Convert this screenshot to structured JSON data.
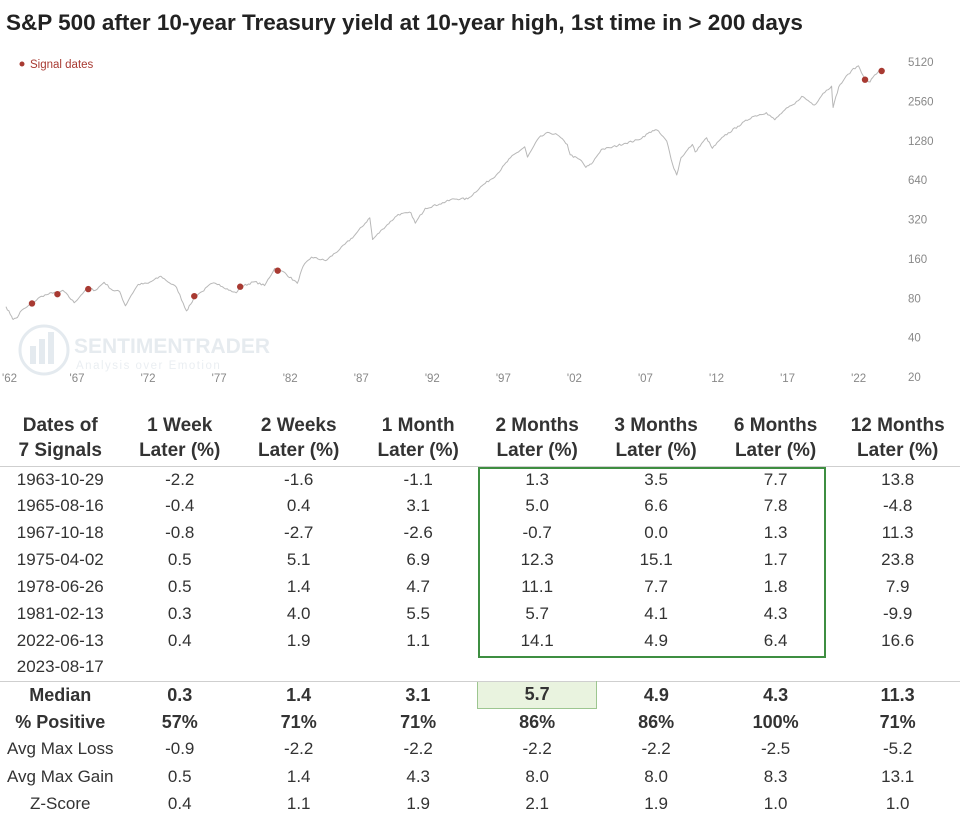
{
  "title": "S&P 500 after 10-year Treasury yield at 10-year high, 1st time in > 200 days",
  "chart_data": {
    "type": "line",
    "legend": "Signal dates",
    "legend_color": "#a83a32",
    "line_color": "#b8b8b8",
    "legend_placement": "top-left",
    "yscale": "log",
    "ylim": [
      20,
      5120
    ],
    "xlim": [
      1962.0,
      2024.7
    ],
    "yticks": [
      5120,
      2560,
      1280,
      640,
      320,
      160,
      80,
      40,
      20
    ],
    "xticks": [
      {
        "x": 1962,
        "label": "'62"
      },
      {
        "x": 1967,
        "label": "'67"
      },
      {
        "x": 1972,
        "label": "'72"
      },
      {
        "x": 1977,
        "label": "'77"
      },
      {
        "x": 1982,
        "label": "'82"
      },
      {
        "x": 1987,
        "label": "'87"
      },
      {
        "x": 1992,
        "label": "'92"
      },
      {
        "x": 1997,
        "label": "'97"
      },
      {
        "x": 2002,
        "label": "'02"
      },
      {
        "x": 2007,
        "label": "'07"
      },
      {
        "x": 2012,
        "label": "'12"
      },
      {
        "x": 2017,
        "label": "'17"
      },
      {
        "x": 2022,
        "label": "'22"
      }
    ],
    "series": [
      {
        "points": [
          [
            1962.0,
            69
          ],
          [
            1962.4,
            58
          ],
          [
            1962.5,
            55
          ],
          [
            1962.8,
            57
          ],
          [
            1963.0,
            63
          ],
          [
            1963.5,
            69
          ],
          [
            1963.8,
            73
          ],
          [
            1964.5,
            83
          ],
          [
            1965.0,
            86
          ],
          [
            1965.4,
            89
          ],
          [
            1965.6,
            86
          ],
          [
            1966.0,
            92
          ],
          [
            1966.8,
            74
          ],
          [
            1967.5,
            90
          ],
          [
            1967.8,
            95
          ],
          [
            1968.3,
            92
          ],
          [
            1968.9,
            106
          ],
          [
            1969.5,
            92
          ],
          [
            1970.0,
            90
          ],
          [
            1970.4,
            70
          ],
          [
            1970.8,
            84
          ],
          [
            1971.3,
            102
          ],
          [
            1972.0,
            104
          ],
          [
            1972.9,
            118
          ],
          [
            1973.5,
            105
          ],
          [
            1974.0,
            97
          ],
          [
            1974.7,
            64
          ],
          [
            1975.0,
            72
          ],
          [
            1975.3,
            83
          ],
          [
            1975.8,
            90
          ],
          [
            1976.5,
            104
          ],
          [
            1977.0,
            102
          ],
          [
            1977.9,
            90
          ],
          [
            1978.2,
            88
          ],
          [
            1978.5,
            98
          ],
          [
            1979.5,
            107
          ],
          [
            1980.2,
            100
          ],
          [
            1980.9,
            135
          ],
          [
            1981.1,
            130
          ],
          [
            1981.5,
            128
          ],
          [
            1982.5,
            104
          ],
          [
            1982.9,
            140
          ],
          [
            1983.5,
            165
          ],
          [
            1984.5,
            155
          ],
          [
            1985.5,
            190
          ],
          [
            1986.5,
            240
          ],
          [
            1987.6,
            330
          ],
          [
            1987.8,
            225
          ],
          [
            1988.5,
            270
          ],
          [
            1989.6,
            350
          ],
          [
            1990.5,
            360
          ],
          [
            1990.8,
            300
          ],
          [
            1991.5,
            390
          ],
          [
            1992.5,
            420
          ],
          [
            1993.5,
            460
          ],
          [
            1994.5,
            460
          ],
          [
            1995.5,
            580
          ],
          [
            1996.5,
            700
          ],
          [
            1997.5,
            950
          ],
          [
            1998.5,
            1150
          ],
          [
            1998.7,
            960
          ],
          [
            1999.5,
            1350
          ],
          [
            2000.2,
            1480
          ],
          [
            2000.8,
            1420
          ],
          [
            2001.5,
            1200
          ],
          [
            2001.7,
            1000
          ],
          [
            2002.5,
            900
          ],
          [
            2002.8,
            800
          ],
          [
            2003.2,
            850
          ],
          [
            2003.9,
            1100
          ],
          [
            2004.5,
            1130
          ],
          [
            2005.5,
            1220
          ],
          [
            2006.5,
            1300
          ],
          [
            2007.5,
            1530
          ],
          [
            2007.8,
            1550
          ],
          [
            2008.5,
            1270
          ],
          [
            2008.9,
            850
          ],
          [
            2009.2,
            700
          ],
          [
            2009.5,
            950
          ],
          [
            2010.3,
            1200
          ],
          [
            2010.5,
            1050
          ],
          [
            2011.3,
            1350
          ],
          [
            2011.7,
            1120
          ],
          [
            2012.5,
            1380
          ],
          [
            2013.5,
            1650
          ],
          [
            2014.5,
            1950
          ],
          [
            2015.5,
            2100
          ],
          [
            2016.1,
            1850
          ],
          [
            2016.8,
            2200
          ],
          [
            2017.5,
            2450
          ],
          [
            2018.0,
            2800
          ],
          [
            2018.9,
            2400
          ],
          [
            2019.5,
            2950
          ],
          [
            2020.1,
            3350
          ],
          [
            2020.2,
            2300
          ],
          [
            2020.6,
            3300
          ],
          [
            2021.0,
            3800
          ],
          [
            2021.5,
            4400
          ],
          [
            2021.99,
            4790
          ],
          [
            2022.4,
            3900
          ],
          [
            2022.45,
            3750
          ],
          [
            2022.8,
            3600
          ],
          [
            2023.0,
            3900
          ],
          [
            2023.5,
            4450
          ],
          [
            2023.62,
            4370
          ]
        ]
      }
    ],
    "signals": [
      [
        1963.83,
        73
      ],
      [
        1965.62,
        86
      ],
      [
        1967.79,
        94
      ],
      [
        1975.25,
        83
      ],
      [
        1978.48,
        98
      ],
      [
        1981.12,
        130
      ],
      [
        2022.45,
        3750
      ],
      [
        2023.62,
        4370
      ]
    ]
  },
  "table": {
    "headers": [
      [
        "Dates of",
        "7 Signals"
      ],
      [
        "1 Week",
        "Later (%)"
      ],
      [
        "2 Weeks",
        "Later (%)"
      ],
      [
        "1 Month",
        "Later (%)"
      ],
      [
        "2 Months",
        "Later (%)"
      ],
      [
        "3 Months",
        "Later (%)"
      ],
      [
        "6 Months",
        "Later (%)"
      ],
      [
        "12 Months",
        "Later (%)"
      ]
    ],
    "rows": [
      [
        "1963-10-29",
        "-2.2",
        "-1.6",
        "-1.1",
        "1.3",
        "3.5",
        "7.7",
        "13.8"
      ],
      [
        "1965-08-16",
        "-0.4",
        "0.4",
        "3.1",
        "5.0",
        "6.6",
        "7.8",
        "-4.8"
      ],
      [
        "1967-10-18",
        "-0.8",
        "-2.7",
        "-2.6",
        "-0.7",
        "0.0",
        "1.3",
        "11.3"
      ],
      [
        "1975-04-02",
        "0.5",
        "5.1",
        "6.9",
        "12.3",
        "15.1",
        "1.7",
        "23.8"
      ],
      [
        "1978-06-26",
        "0.5",
        "1.4",
        "4.7",
        "11.1",
        "7.7",
        "1.8",
        "7.9"
      ],
      [
        "1981-02-13",
        "0.3",
        "4.0",
        "5.5",
        "5.7",
        "4.1",
        "4.3",
        "-9.9"
      ],
      [
        "2022-06-13",
        "0.4",
        "1.9",
        "1.1",
        "14.1",
        "4.9",
        "6.4",
        "16.6"
      ],
      [
        "2023-08-17",
        "",
        "",
        "",
        "",
        "",
        "",
        ""
      ]
    ],
    "summary": [
      [
        "Median",
        "0.3",
        "1.4",
        "3.1",
        "5.7",
        "4.9",
        "4.3",
        "11.3"
      ],
      [
        "% Positive",
        "57%",
        "71%",
        "71%",
        "86%",
        "86%",
        "100%",
        "71%"
      ],
      [
        "Avg Max Loss",
        "-0.9",
        "-2.2",
        "-2.2",
        "-2.2",
        "-2.2",
        "-2.5",
        "-5.2"
      ],
      [
        "Avg Max Gain",
        "0.5",
        "1.4",
        "4.3",
        "8.0",
        "8.0",
        "8.3",
        "13.1"
      ],
      [
        "Z-Score",
        "0.4",
        "1.1",
        "1.9",
        "2.1",
        "1.9",
        "1.0",
        "1.0"
      ]
    ]
  },
  "watermark": {
    "name": "SENTIMENTRADER",
    "tagline": "Analysis over Emotion"
  }
}
